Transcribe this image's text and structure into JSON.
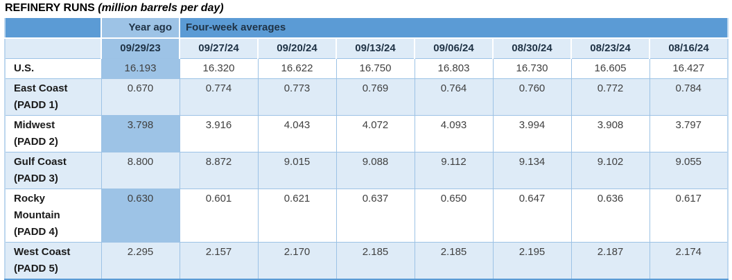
{
  "title": {
    "main": "REFINERY RUNS",
    "unit": "(million barrels per day)"
  },
  "table": {
    "group_headers": {
      "year_ago": "Year ago",
      "four_week": "Four-week averages"
    },
    "date_headers": [
      "09/29/23",
      "09/27/24",
      "09/20/24",
      "09/13/24",
      "09/06/24",
      "08/30/24",
      "08/23/24",
      "08/16/24"
    ],
    "rows": [
      {
        "label": "U.S.",
        "label2": "",
        "values": [
          "16.193",
          "16.320",
          "16.622",
          "16.750",
          "16.803",
          "16.730",
          "16.605",
          "16.427"
        ]
      },
      {
        "label": "East Coast",
        "label2": "(PADD 1)",
        "values": [
          "0.670",
          "0.774",
          "0.773",
          "0.769",
          "0.764",
          "0.760",
          "0.772",
          "0.784"
        ]
      },
      {
        "label": "Midwest",
        "label2": "(PADD 2)",
        "values": [
          "3.798",
          "3.916",
          "4.043",
          "4.072",
          "4.093",
          "3.994",
          "3.908",
          "3.797"
        ]
      },
      {
        "label": "Gulf Coast",
        "label2": "(PADD 3)",
        "values": [
          "8.800",
          "8.872",
          "9.015",
          "9.088",
          "9.112",
          "9.134",
          "9.102",
          "9.055"
        ]
      },
      {
        "label": "Rocky Mountain",
        "label2": "(PADD 4)",
        "values": [
          "0.630",
          "0.601",
          "0.621",
          "0.637",
          "0.650",
          "0.647",
          "0.636",
          "0.617"
        ]
      },
      {
        "label": "West Coast",
        "label2": "(PADD 5)",
        "values": [
          "2.295",
          "2.157",
          "2.170",
          "2.185",
          "2.185",
          "2.195",
          "2.187",
          "2.174"
        ]
      }
    ]
  },
  "colors": {
    "header_blue": "#5B9BD5",
    "year_ago_blue": "#9DC3E6",
    "row_stripe_blue": "#DEEBF7",
    "grid_line_blue": "#9CC2E5",
    "header_text": "#1F3245",
    "value_text": "#404040"
  },
  "chart_data": {
    "type": "table",
    "title": "REFINERY RUNS (million barrels per day)",
    "column_groups": [
      {
        "label": "Year ago",
        "columns": [
          "09/29/23"
        ]
      },
      {
        "label": "Four-week averages",
        "columns": [
          "09/27/24",
          "09/20/24",
          "09/13/24",
          "09/06/24",
          "08/30/24",
          "08/23/24",
          "08/16/24"
        ]
      }
    ],
    "columns": [
      "09/29/23",
      "09/27/24",
      "09/20/24",
      "09/13/24",
      "09/06/24",
      "08/30/24",
      "08/23/24",
      "08/16/24"
    ],
    "series": [
      {
        "name": "U.S.",
        "values": [
          16.193,
          16.32,
          16.622,
          16.75,
          16.803,
          16.73,
          16.605,
          16.427
        ]
      },
      {
        "name": "East Coast (PADD 1)",
        "values": [
          0.67,
          0.774,
          0.773,
          0.769,
          0.764,
          0.76,
          0.772,
          0.784
        ]
      },
      {
        "name": "Midwest (PADD 2)",
        "values": [
          3.798,
          3.916,
          4.043,
          4.072,
          4.093,
          3.994,
          3.908,
          3.797
        ]
      },
      {
        "name": "Gulf Coast (PADD 3)",
        "values": [
          8.8,
          8.872,
          9.015,
          9.088,
          9.112,
          9.134,
          9.102,
          9.055
        ]
      },
      {
        "name": "Rocky Mountain (PADD 4)",
        "values": [
          0.63,
          0.601,
          0.621,
          0.637,
          0.65,
          0.647,
          0.636,
          0.617
        ]
      },
      {
        "name": "West Coast (PADD 5)",
        "values": [
          2.295,
          2.157,
          2.17,
          2.185,
          2.185,
          2.195,
          2.187,
          2.174
        ]
      }
    ]
  }
}
